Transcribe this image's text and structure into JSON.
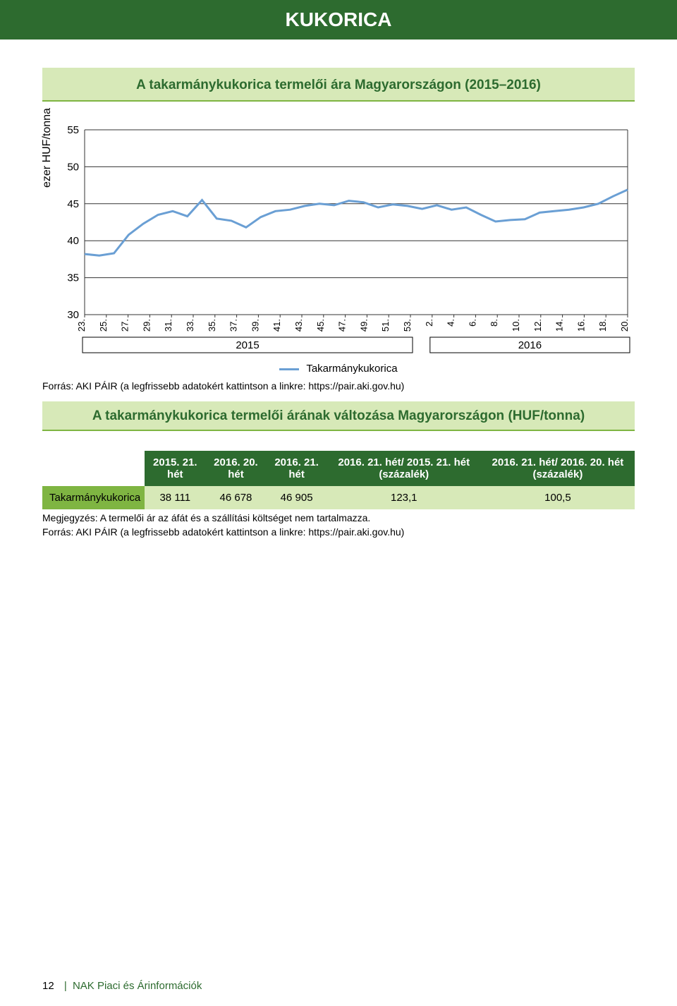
{
  "header": {
    "title": "KUKORICA"
  },
  "chart": {
    "type": "line",
    "title": "A takarmánykukorica termelői ára Magyarországon (2015–2016)",
    "ylabel": "ezer HUF/tonna",
    "ylim": [
      30,
      55
    ],
    "ytick_step": 5,
    "yticks": [
      30,
      35,
      40,
      45,
      50,
      55
    ],
    "x_labels": [
      "23.",
      "25.",
      "27.",
      "29.",
      "31.",
      "33.",
      "35.",
      "37.",
      "39.",
      "41.",
      "43.",
      "45.",
      "47.",
      "49.",
      "51.",
      "53.",
      "2.",
      "4.",
      "6.",
      "8.",
      "10.",
      "12.",
      "14.",
      "16.",
      "18.",
      "20."
    ],
    "x_year_groups": [
      {
        "label": "2015",
        "start": 0,
        "end": 15
      },
      {
        "label": "2016",
        "start": 16,
        "end": 25
      }
    ],
    "series": [
      {
        "name": "Takarmánykukorica",
        "color": "#6a9fd4",
        "stroke_width": 3,
        "values": [
          38.2,
          38.0,
          38.3,
          40.8,
          42.3,
          43.5,
          44.0,
          43.3,
          45.5,
          43.0,
          42.7,
          41.8,
          43.2,
          44.0,
          44.2,
          44.7,
          45.0,
          44.8,
          45.4,
          45.2,
          44.5,
          44.9,
          44.7,
          44.3,
          44.8,
          44.2,
          44.5,
          43.5,
          42.6,
          42.8,
          42.9,
          43.8,
          44.0,
          44.2,
          44.5,
          45.0,
          46.0,
          46.9
        ]
      }
    ],
    "background_color": "#ffffff",
    "grid_color": "#333333",
    "gridlines": true,
    "x_sample_count": 38,
    "legend": {
      "label": "Takarmánykukorica"
    }
  },
  "source_chart": "Forrás: AKI PÁIR (a legfrissebb adatokért kattintson a linkre: https://pair.aki.gov.hu)",
  "table": {
    "type": "table",
    "title": "A takarmánykukorica termelői árának változása Magyarországon (HUF/tonna)",
    "header_bg": "#2d6b2f",
    "header_fg": "#ffffff",
    "rowname_bg": "#7fb542",
    "cell_bg": "#d7e9b8",
    "columns": [
      "2015. 21. hét",
      "2016. 20. hét",
      "2016. 21. hét",
      "2016. 21. hét/ 2015. 21. hét (százalék)",
      "2016. 21. hét/ 2016. 20. hét (százalék)"
    ],
    "rows": [
      {
        "name": "Takarmánykukorica",
        "cells": [
          "38 111",
          "46 678",
          "46 905",
          "123,1",
          "100,5"
        ]
      }
    ]
  },
  "note1": "Megjegyzés: A termelői ár az áfát és a szállítási költséget nem tartalmazza.",
  "note2": "Forrás: AKI PÁIR (a legfrissebb adatokért kattintson a linkre: https://pair.aki.gov.hu)",
  "footer": {
    "page": "12",
    "sep": "|",
    "pub": "NAK Piaci és Árinformációk"
  }
}
